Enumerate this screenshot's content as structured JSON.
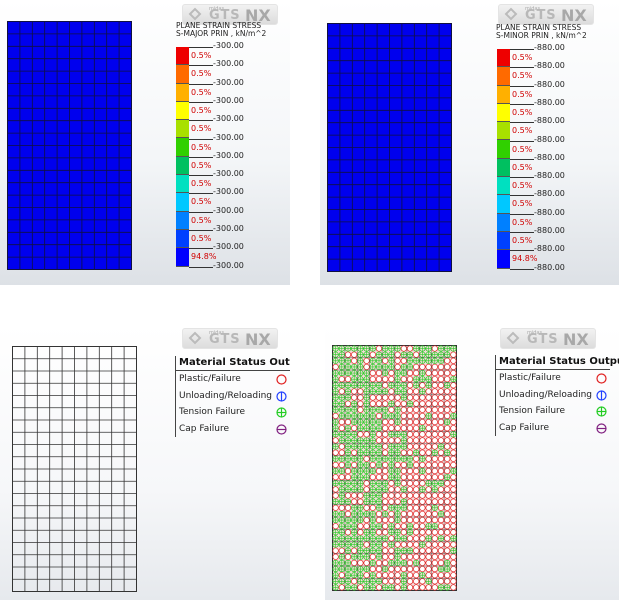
{
  "logo": {
    "brand": "GTS",
    "suffix": "NX",
    "small_text": "midas"
  },
  "legend_major": {
    "title_line1": "PLANE STRAIN STRESS",
    "title_line2": "S-MAJOR PRIN , kN/m^2",
    "colors": [
      "#ee0000",
      "#ff6a00",
      "#ffb000",
      "#ffff00",
      "#a8e000",
      "#30d000",
      "#00c060",
      "#00e0c0",
      "#00c8ff",
      "#0080ff",
      "#0040ff",
      "#0000ff"
    ],
    "percents": [
      "0.5%",
      "0.5%",
      "0.5%",
      "0.5%",
      "0.5%",
      "0.5%",
      "0.5%",
      "0.5%",
      "0.5%",
      "0.5%",
      "0.5%",
      "94.8%"
    ],
    "values": [
      "-300.00",
      "-300.00",
      "-300.00",
      "-300.00",
      "-300.00",
      "-300.00",
      "-300.00",
      "-300.00",
      "-300.00",
      "-300.00",
      "-300.00",
      "-300.00",
      "-300.00"
    ]
  },
  "legend_minor": {
    "title_line1": "PLANE STRAIN STRESS",
    "title_line2": "S-MINOR PRIN , kN/m^2",
    "colors": [
      "#ee0000",
      "#ff6a00",
      "#ffb000",
      "#ffff00",
      "#a8e000",
      "#30d000",
      "#00c060",
      "#00e0c0",
      "#00c8ff",
      "#0080ff",
      "#0040ff",
      "#0000ff"
    ],
    "percents": [
      "0.5%",
      "0.5%",
      "0.5%",
      "0.5%",
      "0.5%",
      "0.5%",
      "0.5%",
      "0.5%",
      "0.5%",
      "0.5%",
      "0.5%",
      "94.8%"
    ],
    "values": [
      "-880.00",
      "-880.00",
      "-880.00",
      "-880.00",
      "-880.00",
      "-880.00",
      "-880.00",
      "-880.00",
      "-880.00",
      "-880.00",
      "-880.00",
      "-880.00",
      "-880.00"
    ]
  },
  "status_legend": {
    "title": "Material Status Output",
    "items": [
      {
        "label": "Plastic/Failure",
        "icon": "red-circle-icon"
      },
      {
        "label": "Unloading/Reloading",
        "icon": "blue-circle-vertical-line-icon"
      },
      {
        "label": "Tension Failure",
        "icon": "green-circle-cross-icon"
      },
      {
        "label": "Cap Failure",
        "icon": "purple-circle-horizontal-line-icon"
      }
    ]
  },
  "colors": {
    "mesh_blue": "#0000ee",
    "plastic_red": "#e02020",
    "tension_green": "#22cc22",
    "unload_blue": "#2040ff",
    "cap_purple": "#802080"
  }
}
